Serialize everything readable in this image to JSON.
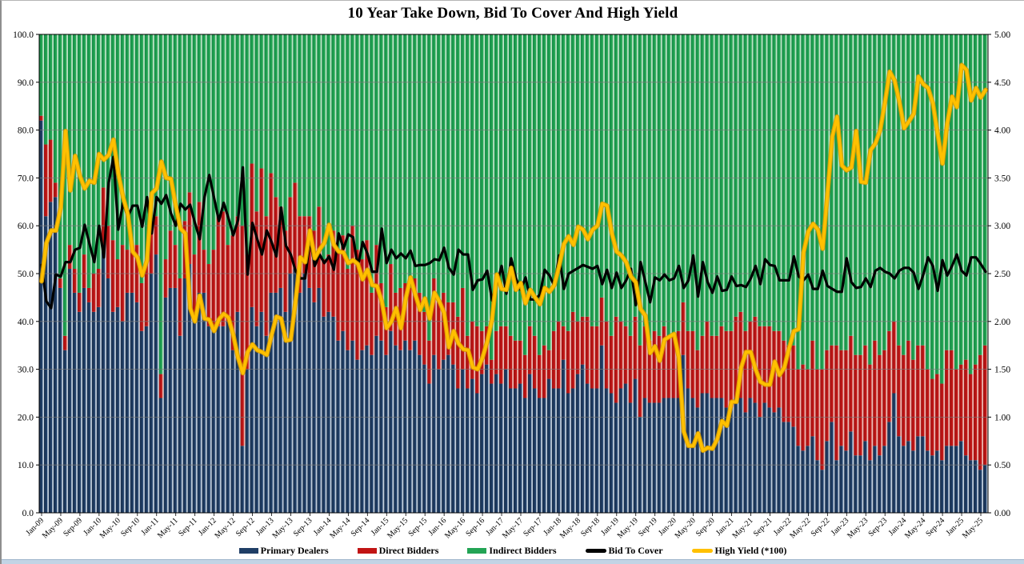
{
  "title": "10 Year Take Down, Bid To Cover And High Yield",
  "colors": {
    "primary_dealers": "#1F3E66",
    "direct_bidders": "#C11414",
    "indirect_bidders": "#23A455",
    "bid_to_cover": "#000000",
    "high_yield": "#FFC000",
    "gridline": "#7a7a7a",
    "bottom_strip": "#C2D4E5"
  },
  "legend": {
    "items": [
      {
        "label": "Primary Dealers",
        "color": "#1F3E66",
        "type": "bar"
      },
      {
        "label": "Direct Bidders",
        "color": "#C11414",
        "type": "bar"
      },
      {
        "label": "Indirect Bidders",
        "color": "#23A455",
        "type": "bar"
      },
      {
        "label": "Bid To Cover",
        "color": "#000000",
        "type": "line"
      },
      {
        "label": "High Yield (*100)",
        "color": "#FFC000",
        "type": "line"
      }
    ]
  },
  "chart_data": {
    "type": "combo",
    "subtype": "100%-stacked-monthly-bars-with-two-lines",
    "title": "10 Year Take Down, Bid To Cover And High Yield",
    "x_start": "Jan-09",
    "x_end": "Jun-25",
    "x_frequency": "monthly",
    "grid": "horizontal-only",
    "legend_position": "bottom",
    "left_axis": {
      "min": 0,
      "max": 100,
      "step": 10,
      "labels": [
        "100.0",
        "90.0",
        "80.0",
        "70.0",
        "60.0",
        "50.0",
        "40.0",
        "30.0",
        "20.0",
        "10.0",
        "0.0"
      ]
    },
    "right_axis": {
      "min": 0,
      "max": 5,
      "step": 0.5,
      "labels": [
        "5.00",
        "4.50",
        "4.00",
        "3.50",
        "3.00",
        "2.50",
        "2.00",
        "1.50",
        "1.00",
        "0.50",
        "0.00"
      ]
    },
    "x_tick_labels": [
      "Jan-09",
      "May-09",
      "Sep-09",
      "Jan-10",
      "May-10",
      "Sep-10",
      "Jan-11",
      "May-11",
      "Sep-11",
      "Jan-12",
      "May-12",
      "Sep-12",
      "Jan-13",
      "May-13",
      "Sep-13",
      "Jan-14",
      "May-14",
      "Sep-14",
      "Jan-15",
      "May-15",
      "Sep-15",
      "Jan-16",
      "May-16",
      "Sep-16",
      "Jan-17",
      "May-17",
      "Sep-17",
      "Jan-18",
      "May-18",
      "Sep-18",
      "Jan-19",
      "May-19",
      "Sep-19",
      "Jan-20",
      "May-20",
      "Sep-20",
      "Jan-21",
      "May-21",
      "Sep-21",
      "Jan-22",
      "May-22",
      "Sep-22",
      "Jan-23",
      "May-23",
      "Sep-23",
      "Jan-24",
      "May-24",
      "Sep-24",
      "Jan-25",
      "May-25"
    ],
    "x_tick_every_n_bars": 4,
    "series": [
      {
        "name": "Primary Dealers",
        "type": "bar",
        "axis": "left",
        "stack": "takedown",
        "values": [
          82,
          62,
          65,
          66,
          47,
          34,
          51,
          46,
          42,
          47,
          44,
          42,
          43,
          56,
          49,
          42,
          43,
          40,
          46,
          46,
          44,
          38,
          39,
          50,
          54,
          24,
          45,
          47,
          47,
          37,
          49,
          52,
          40,
          46,
          46,
          39,
          38,
          39,
          39,
          40,
          34,
          42,
          14,
          30,
          43,
          39,
          42,
          37,
          46,
          46,
          47,
          42,
          50,
          51,
          46,
          50,
          47,
          44,
          47,
          41,
          42,
          41,
          36,
          38,
          34,
          36,
          32,
          34,
          35,
          33,
          37,
          36,
          33,
          38,
          35,
          34,
          36,
          34,
          36,
          33,
          31,
          27,
          33,
          30,
          32,
          33,
          31,
          26,
          30,
          26,
          28,
          25,
          29,
          31,
          27,
          29,
          27,
          30,
          26,
          26,
          27,
          24,
          29,
          26,
          24,
          24,
          28,
          26,
          26,
          32,
          25,
          26,
          29,
          31,
          27,
          26,
          26,
          35,
          26,
          25,
          23,
          26,
          27,
          23,
          28,
          20,
          24,
          23,
          23,
          23,
          24,
          24,
          24,
          24,
          33,
          26,
          24,
          22,
          25,
          25,
          24,
          24,
          24,
          22,
          22,
          24,
          24,
          21,
          24,
          23,
          20,
          23,
          22,
          21,
          22,
          19,
          19,
          18,
          14,
          13,
          14,
          16,
          11,
          9,
          15,
          19,
          11,
          14,
          13,
          17,
          12,
          12,
          15,
          11,
          14,
          12,
          14,
          19,
          25,
          16,
          14,
          15,
          13,
          16,
          16,
          13,
          12,
          13,
          11,
          14,
          14,
          14,
          15,
          12,
          11,
          11,
          9,
          10
        ]
      },
      {
        "name": "Direct Bidders",
        "type": "bar",
        "axis": "left",
        "stack": "takedown",
        "values": [
          1,
          15,
          13,
          3,
          2,
          3,
          5,
          5,
          4,
          7,
          3,
          8,
          8,
          12,
          11,
          15,
          10,
          16,
          9,
          10,
          12,
          10,
          14,
          10,
          8,
          5,
          8,
          12,
          9,
          12,
          12,
          15,
          14,
          19,
          9,
          13,
          17,
          23,
          24,
          16,
          24,
          20,
          46,
          24,
          30,
          24,
          30,
          25,
          25,
          20,
          17,
          17,
          16,
          18,
          16,
          12,
          15,
          15,
          17,
          12,
          12,
          18,
          19,
          20,
          17,
          24,
          23,
          19,
          22,
          13,
          19,
          12,
          10,
          14,
          11,
          13,
          12,
          13,
          13,
          13,
          11,
          9,
          16,
          14,
          14,
          11,
          13,
          15,
          17,
          11,
          12,
          14,
          9,
          8,
          5,
          9,
          12,
          9,
          11,
          10,
          9,
          9,
          10,
          11,
          9,
          11,
          6,
          12,
          14,
          7,
          13,
          16,
          11,
          10,
          14,
          13,
          13,
          10,
          14,
          12,
          18,
          14,
          12,
          14,
          13,
          15,
          15,
          13,
          15,
          14,
          15,
          13,
          13,
          14,
          11,
          12,
          14,
          12,
          12,
          15,
          13,
          13,
          15,
          16,
          16,
          17,
          18,
          17,
          16,
          18,
          19,
          16,
          17,
          17,
          16,
          17,
          16,
          17,
          16,
          18,
          16,
          20,
          19,
          21,
          19,
          16,
          24,
          20,
          21,
          20,
          21,
          21,
          20,
          20,
          22,
          21,
          20,
          19,
          15,
          19,
          19,
          21,
          19,
          19,
          19,
          17,
          16,
          16,
          16,
          20,
          20,
          16,
          16,
          20,
          18,
          20,
          24,
          25
        ]
      },
      {
        "name": "Indirect Bidders",
        "type": "bar",
        "axis": "left",
        "stack": "takedown",
        "values": [
          17,
          23,
          22,
          31,
          51,
          63,
          44,
          49,
          54,
          46,
          53,
          50,
          49,
          32,
          40,
          43,
          47,
          44,
          45,
          44,
          44,
          52,
          47,
          40,
          38,
          71,
          47,
          41,
          44,
          51,
          39,
          33,
          46,
          35,
          45,
          48,
          45,
          38,
          37,
          44,
          42,
          38,
          40,
          46,
          27,
          37,
          28,
          38,
          29,
          34,
          36,
          41,
          34,
          31,
          38,
          38,
          38,
          41,
          36,
          47,
          46,
          41,
          45,
          42,
          49,
          40,
          45,
          47,
          43,
          54,
          44,
          52,
          57,
          48,
          54,
          53,
          52,
          53,
          51,
          54,
          58,
          64,
          51,
          56,
          54,
          56,
          56,
          59,
          53,
          63,
          60,
          61,
          62,
          61,
          68,
          62,
          61,
          61,
          63,
          64,
          64,
          67,
          61,
          63,
          67,
          65,
          66,
          62,
          60,
          61,
          62,
          58,
          60,
          59,
          59,
          61,
          61,
          55,
          60,
          63,
          59,
          60,
          61,
          63,
          59,
          65,
          61,
          64,
          62,
          63,
          61,
          63,
          63,
          62,
          56,
          62,
          62,
          66,
          63,
          60,
          63,
          63,
          61,
          62,
          62,
          59,
          58,
          62,
          60,
          59,
          61,
          61,
          61,
          62,
          62,
          64,
          65,
          65,
          70,
          69,
          70,
          64,
          70,
          70,
          66,
          65,
          65,
          66,
          66,
          63,
          67,
          67,
          65,
          69,
          64,
          67,
          66,
          62,
          60,
          65,
          67,
          64,
          68,
          65,
          65,
          70,
          72,
          71,
          73,
          66,
          66,
          70,
          69,
          68,
          71,
          69,
          67,
          65
        ]
      },
      {
        "name": "Bid To Cover",
        "type": "line",
        "axis": "right",
        "values": [
          2.59,
          2.21,
          2.14,
          2.49,
          2.47,
          2.62,
          2.62,
          2.75,
          2.77,
          3.01,
          2.81,
          2.62,
          3.0,
          2.67,
          3.45,
          3.72,
          2.96,
          3.24,
          3.09,
          3.21,
          3.21,
          2.99,
          3.3,
          2.92,
          3.3,
          3.23,
          3.32,
          3.13,
          3.0,
          3.23,
          3.17,
          3.22,
          3.03,
          2.86,
          3.3,
          3.53,
          3.29,
          3.05,
          3.24,
          3.08,
          2.9,
          3.06,
          3.61,
          2.49,
          3.03,
          2.86,
          2.7,
          2.95,
          2.83,
          2.68,
          3.19,
          2.79,
          2.7,
          2.53,
          2.45,
          2.45,
          2.86,
          2.58,
          2.7,
          2.61,
          2.68,
          2.54,
          2.92,
          2.76,
          2.91,
          2.88,
          2.57,
          2.83,
          2.71,
          2.52,
          2.52,
          2.97,
          2.61,
          2.75,
          2.66,
          2.71,
          2.66,
          2.74,
          2.58,
          2.59,
          2.59,
          2.61,
          2.65,
          2.64,
          2.77,
          2.56,
          2.49,
          2.75,
          2.7,
          2.7,
          2.33,
          2.43,
          2.44,
          2.53,
          2.22,
          2.39,
          2.58,
          2.29,
          2.66,
          2.45,
          2.33,
          2.46,
          2.23,
          2.23,
          2.28,
          2.54,
          2.48,
          2.37,
          2.69,
          2.34,
          2.5,
          2.53,
          2.56,
          2.59,
          2.57,
          2.55,
          2.58,
          2.39,
          2.54,
          2.35,
          2.51,
          2.35,
          2.43,
          2.55,
          2.17,
          2.62,
          2.41,
          2.2,
          2.46,
          2.43,
          2.49,
          2.43,
          2.45,
          2.58,
          2.35,
          2.43,
          2.69,
          2.26,
          2.62,
          2.41,
          2.3,
          2.47,
          2.32,
          2.33,
          2.47,
          2.37,
          2.38,
          2.36,
          2.45,
          2.58,
          2.39,
          2.65,
          2.59,
          2.58,
          2.43,
          2.43,
          2.43,
          2.68,
          2.47,
          2.43,
          2.49,
          2.34,
          2.34,
          2.53,
          2.37,
          2.34,
          2.31,
          2.31,
          2.66,
          2.41,
          2.35,
          2.36,
          2.45,
          2.36,
          2.53,
          2.56,
          2.52,
          2.5,
          2.45,
          2.53,
          2.56,
          2.56,
          2.51,
          2.34,
          2.49,
          2.67,
          2.58,
          2.32,
          2.64,
          2.48,
          2.58,
          2.7,
          2.53,
          2.48,
          2.67,
          2.67,
          2.6,
          2.52
        ]
      },
      {
        "name": "High Yield (*100)",
        "type": "line",
        "axis": "right",
        "values": [
          2.42,
          2.82,
          2.95,
          2.95,
          3.19,
          3.99,
          3.37,
          3.73,
          3.52,
          3.39,
          3.47,
          3.45,
          3.75,
          3.69,
          3.74,
          3.9,
          3.55,
          3.3,
          3.12,
          2.73,
          2.67,
          2.48,
          2.64,
          3.34,
          3.39,
          3.67,
          3.5,
          3.49,
          3.21,
          2.97,
          2.92,
          2.14,
          2.0,
          2.27,
          2.03,
          2.02,
          1.9,
          2.02,
          2.08,
          2.04,
          1.86,
          1.62,
          1.46,
          1.68,
          1.76,
          1.7,
          1.68,
          1.65,
          1.86,
          2.05,
          2.03,
          1.8,
          1.81,
          2.21,
          2.67,
          2.62,
          2.95,
          2.66,
          2.75,
          2.82,
          3.01,
          2.8,
          2.73,
          2.72,
          2.61,
          2.64,
          2.6,
          2.44,
          2.54,
          2.38,
          2.37,
          2.21,
          1.93,
          2.0,
          2.14,
          1.93,
          2.24,
          2.46,
          2.28,
          2.12,
          2.24,
          2.03,
          2.3,
          2.21,
          2.09,
          1.73,
          1.9,
          1.77,
          1.71,
          1.7,
          1.52,
          1.5,
          1.62,
          1.79,
          2.02,
          2.49,
          2.34,
          2.33,
          2.56,
          2.33,
          2.4,
          2.19,
          2.33,
          2.25,
          2.18,
          2.35,
          2.31,
          2.38,
          2.58,
          2.81,
          2.89,
          2.8,
          2.99,
          2.96,
          2.86,
          2.96,
          3.0,
          3.23,
          3.21,
          2.92,
          2.73,
          2.69,
          2.62,
          2.47,
          2.41,
          2.13,
          2.06,
          1.67,
          1.74,
          1.59,
          1.81,
          1.84,
          1.87,
          1.62,
          0.85,
          0.7,
          0.7,
          0.83,
          0.65,
          0.68,
          0.67,
          0.77,
          0.96,
          0.91,
          1.16,
          1.16,
          1.52,
          1.68,
          1.68,
          1.5,
          1.37,
          1.34,
          1.34,
          1.58,
          1.44,
          1.52,
          1.72,
          1.9,
          1.92,
          2.72,
          2.94,
          3.02,
          2.96,
          2.76,
          3.33,
          3.93,
          4.14,
          3.63,
          3.58,
          3.61,
          3.99,
          3.46,
          3.45,
          3.79,
          3.86,
          4.0,
          4.29,
          4.61,
          4.52,
          4.3,
          4.02,
          4.09,
          4.17,
          4.56,
          4.48,
          4.44,
          4.28,
          3.96,
          3.65,
          4.07,
          4.35,
          4.24,
          4.68,
          4.63,
          4.31,
          4.44,
          4.34,
          4.42
        ]
      }
    ]
  }
}
